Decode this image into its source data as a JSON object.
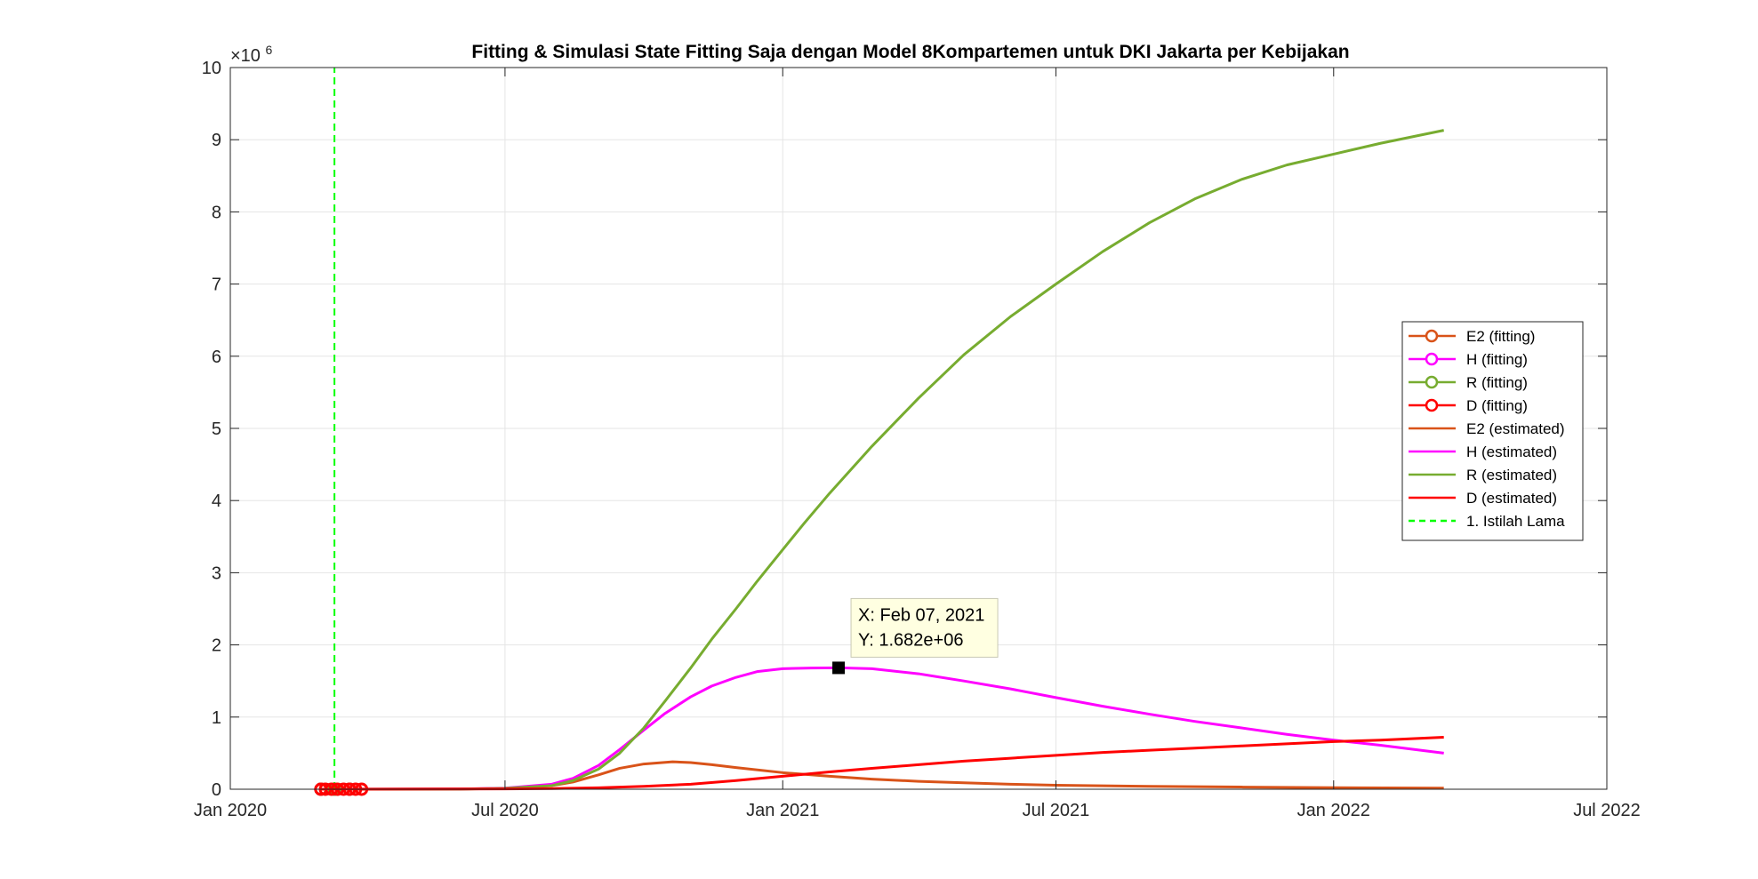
{
  "chart_data": {
    "type": "line",
    "title": "Fitting & Simulasi State Fitting Saja dengan Model 8Kompartemen untuk DKI Jakarta per Kebijakan",
    "xlabel": "",
    "ylabel": "",
    "x_axis": {
      "type": "date",
      "range": [
        "2020-01-01",
        "2022-07-01"
      ],
      "ticks": [
        "2020-01-01",
        "2020-07-01",
        "2021-01-01",
        "2021-07-01",
        "2022-01-01",
        "2022-07-01"
      ],
      "tick_labels": [
        "Jan 2020",
        "Jul 2020",
        "Jan 2021",
        "Jul 2021",
        "Jan 2022",
        "Jul 2022"
      ]
    },
    "y_axis": {
      "range": [
        0,
        10
      ],
      "ticks": [
        0,
        1,
        2,
        3,
        4,
        5,
        6,
        7,
        8,
        9,
        10
      ],
      "tick_labels": [
        "0",
        "1",
        "2",
        "3",
        "4",
        "5",
        "6",
        "7",
        "8",
        "9",
        "10"
      ],
      "exponent_label_base": "×10",
      "exponent_label_power": "6",
      "multiplier": 1000000
    },
    "grid": true,
    "legend_position": "right",
    "series": [
      {
        "name": "E2 (fitting)",
        "kind": "fitting",
        "color": "#D95319",
        "x": [
          "2020-03-01",
          "2020-03-10",
          "2020-03-20"
        ],
        "y": [
          0,
          0,
          0
        ]
      },
      {
        "name": "H (fitting)",
        "kind": "fitting",
        "color": "#FF00FF",
        "x": [
          "2020-03-01",
          "2020-03-10",
          "2020-03-20"
        ],
        "y": [
          0,
          0,
          0
        ]
      },
      {
        "name": "R (fitting)",
        "kind": "fitting",
        "color": "#77AC30",
        "x": [
          "2020-03-01",
          "2020-03-10",
          "2020-03-20"
        ],
        "y": [
          0,
          0,
          0
        ]
      },
      {
        "name": "D (fitting)",
        "kind": "fitting",
        "color": "#FF0000",
        "x": [
          "2020-03-01",
          "2020-03-04",
          "2020-03-08",
          "2020-03-12",
          "2020-03-16",
          "2020-03-20",
          "2020-03-24",
          "2020-03-28"
        ],
        "y": [
          0,
          0,
          0,
          0,
          0,
          0,
          0,
          0
        ]
      },
      {
        "name": "E2 (estimated)",
        "kind": "estimated",
        "color": "#D95319",
        "x": [
          "2020-03-01",
          "2020-06-01",
          "2020-07-01",
          "2020-08-01",
          "2020-08-15",
          "2020-09-01",
          "2020-09-15",
          "2020-10-01",
          "2020-10-20",
          "2020-11-01",
          "2020-11-15",
          "2020-12-01",
          "2021-01-01",
          "2021-02-01",
          "2021-03-01",
          "2021-04-01",
          "2021-05-01",
          "2021-06-01",
          "2021-07-01",
          "2021-09-01",
          "2021-11-01",
          "2022-01-01",
          "2022-03-15"
        ],
        "y": [
          0,
          0.003,
          0.012,
          0.05,
          0.1,
          0.2,
          0.29,
          0.35,
          0.38,
          0.37,
          0.34,
          0.3,
          0.23,
          0.18,
          0.14,
          0.11,
          0.09,
          0.07,
          0.055,
          0.04,
          0.03,
          0.022,
          0.015
        ]
      },
      {
        "name": "H (estimated)",
        "kind": "estimated",
        "color": "#FF00FF",
        "x": [
          "2020-03-01",
          "2020-06-01",
          "2020-07-01",
          "2020-08-01",
          "2020-08-15",
          "2020-09-01",
          "2020-09-15",
          "2020-10-01",
          "2020-10-15",
          "2020-11-01",
          "2020-11-15",
          "2020-12-01",
          "2020-12-15",
          "2021-01-01",
          "2021-01-20",
          "2021-02-07",
          "2021-03-01",
          "2021-04-01",
          "2021-05-01",
          "2021-06-01",
          "2021-07-01",
          "2021-08-01",
          "2021-09-01",
          "2021-10-01",
          "2021-11-01",
          "2021-12-01",
          "2022-01-01",
          "2022-02-01",
          "2022-03-15"
        ],
        "y": [
          0,
          0.003,
          0.015,
          0.07,
          0.15,
          0.33,
          0.55,
          0.82,
          1.05,
          1.28,
          1.43,
          1.55,
          1.63,
          1.67,
          1.68,
          1.682,
          1.67,
          1.6,
          1.5,
          1.39,
          1.27,
          1.15,
          1.04,
          0.94,
          0.85,
          0.76,
          0.68,
          0.61,
          0.5
        ]
      },
      {
        "name": "R (estimated)",
        "kind": "estimated",
        "color": "#77AC30",
        "x": [
          "2020-03-01",
          "2020-06-01",
          "2020-07-01",
          "2020-08-01",
          "2020-08-15",
          "2020-09-01",
          "2020-09-15",
          "2020-10-01",
          "2020-10-15",
          "2020-11-01",
          "2020-11-15",
          "2020-12-01",
          "2020-12-15",
          "2021-01-01",
          "2021-01-15",
          "2021-02-01",
          "2021-03-01",
          "2021-04-01",
          "2021-05-01",
          "2021-06-01",
          "2021-07-01",
          "2021-08-01",
          "2021-09-01",
          "2021-10-01",
          "2021-11-01",
          "2021-12-01",
          "2022-01-01",
          "2022-02-01",
          "2022-03-15"
        ],
        "y": [
          0,
          0.002,
          0.012,
          0.05,
          0.12,
          0.28,
          0.5,
          0.85,
          1.22,
          1.68,
          2.08,
          2.5,
          2.88,
          3.32,
          3.68,
          4.1,
          4.75,
          5.42,
          6.02,
          6.55,
          7.0,
          7.45,
          7.85,
          8.18,
          8.45,
          8.65,
          8.8,
          8.95,
          9.13
        ]
      },
      {
        "name": "D (estimated)",
        "kind": "estimated",
        "color": "#FF0000",
        "x": [
          "2020-03-01",
          "2020-07-01",
          "2020-08-01",
          "2020-09-01",
          "2020-10-01",
          "2020-11-01",
          "2020-12-01",
          "2021-01-01",
          "2021-02-01",
          "2021-03-01",
          "2021-04-01",
          "2021-05-01",
          "2021-06-01",
          "2021-07-01",
          "2021-08-01",
          "2021-09-01",
          "2021-10-01",
          "2021-11-01",
          "2021-12-01",
          "2022-01-01",
          "2022-02-01",
          "2022-03-15"
        ],
        "y": [
          0,
          0.005,
          0.01,
          0.02,
          0.04,
          0.07,
          0.12,
          0.18,
          0.24,
          0.29,
          0.34,
          0.39,
          0.43,
          0.47,
          0.51,
          0.54,
          0.57,
          0.6,
          0.63,
          0.66,
          0.68,
          0.72
        ]
      },
      {
        "name": "1. Istilah Lama",
        "kind": "policy",
        "color": "#00FF00",
        "dashed": true,
        "x": [
          "2020-03-10",
          "2020-03-10"
        ],
        "y": [
          0,
          10
        ]
      }
    ],
    "annotations": [
      {
        "type": "datatip",
        "x": "2021-02-07",
        "y": 1.682,
        "line1": "X: Feb 07, 2021",
        "line2": "Y: 1.682e+06"
      }
    ]
  }
}
